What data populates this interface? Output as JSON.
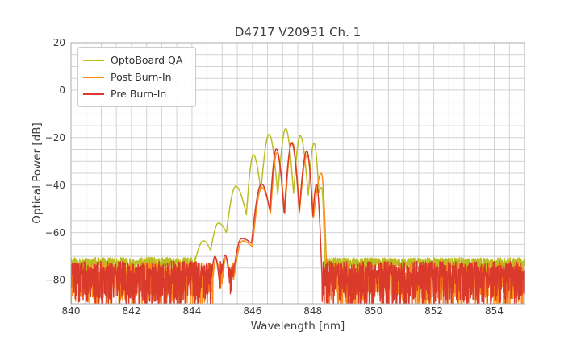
{
  "chart_data": {
    "type": "line",
    "title": "D4717 V20931 Ch. 1",
    "xlabel": "Wavelength [nm]",
    "ylabel": "Optical Power [dB]",
    "xlim": [
      840,
      855
    ],
    "ylim": [
      -90,
      20
    ],
    "x_ticks": [
      {
        "v": 840,
        "label": "840"
      },
      {
        "v": 842,
        "label": "842"
      },
      {
        "v": 844,
        "label": "844"
      },
      {
        "v": 846,
        "label": "846"
      },
      {
        "v": 848,
        "label": "848"
      },
      {
        "v": 850,
        "label": "850"
      },
      {
        "v": 852,
        "label": "852"
      },
      {
        "v": 854,
        "label": "854"
      }
    ],
    "y_ticks": [
      {
        "v": 20,
        "label": "20"
      },
      {
        "v": 0,
        "label": "0"
      },
      {
        "v": -20,
        "label": "−20"
      },
      {
        "v": -40,
        "label": "−40"
      },
      {
        "v": -60,
        "label": "−60"
      },
      {
        "v": -80,
        "label": "−80"
      }
    ],
    "grid": {
      "x_step": 0.5,
      "y_step": 5,
      "color": "#d2d2d2"
    },
    "frame_color": "#ababab",
    "legend_position": "upper left",
    "series": [
      {
        "name": "OptoBoard QA",
        "color": "#bcbd22",
        "line_width": 1.5,
        "seed": 11,
        "envelope_points": [
          [
            844.1,
            -72
          ],
          [
            844.38,
            -63.5
          ],
          [
            844.62,
            -67.5
          ],
          [
            844.88,
            -56
          ],
          [
            845.14,
            -60
          ],
          [
            845.45,
            -40.5
          ],
          [
            845.8,
            -52.5
          ],
          [
            846.03,
            -27.3
          ],
          [
            846.28,
            -42.5
          ],
          [
            846.55,
            -18.6
          ],
          [
            846.84,
            -44
          ],
          [
            847.1,
            -16.2
          ],
          [
            847.36,
            -43.5
          ],
          [
            847.58,
            -19.2
          ],
          [
            847.85,
            -44.5
          ],
          [
            848.04,
            -22.3
          ],
          [
            848.2,
            -43
          ],
          [
            848.29,
            -41
          ],
          [
            848.4,
            -73
          ]
        ],
        "noise_regions": [
          {
            "from": 840,
            "to": 844.45,
            "base": -72.4,
            "amp": 1.9,
            "dip_prob": 0.2,
            "dip_depth": 3
          },
          {
            "from": 848.33,
            "to": 855,
            "base": -72.6,
            "amp": 2.0,
            "dip_prob": 0.2,
            "dip_depth": 3.5
          }
        ]
      },
      {
        "name": "Post Burn-In",
        "color": "#fd8b17",
        "line_width": 1.5,
        "seed": 22,
        "envelope_points": [
          [
            844.7,
            -79
          ],
          [
            844.79,
            -71
          ],
          [
            844.97,
            -86
          ],
          [
            845.13,
            -70.5
          ],
          [
            845.31,
            -88
          ],
          [
            845.67,
            -63.5
          ],
          [
            846.0,
            -66
          ],
          [
            846.31,
            -41
          ],
          [
            846.6,
            -52
          ],
          [
            846.81,
            -26.5
          ],
          [
            847.07,
            -52.5
          ],
          [
            847.31,
            -21.9
          ],
          [
            847.56,
            -51.5
          ],
          [
            847.81,
            -27.3
          ],
          [
            848.02,
            -54
          ],
          [
            848.28,
            -35
          ],
          [
            848.46,
            -77
          ]
        ],
        "noise_regions": [
          {
            "from": 840,
            "to": 845.45,
            "base": -76.2,
            "amp": 3.4,
            "dip_prob": 0.5,
            "dip_depth": 16
          },
          {
            "from": 848.42,
            "to": 855,
            "base": -76.2,
            "amp": 3.4,
            "dip_prob": 0.5,
            "dip_depth": 16
          }
        ]
      },
      {
        "name": "Pre Burn-In",
        "color": "#d93a2b",
        "line_width": 1.5,
        "seed": 33,
        "envelope_points": [
          [
            844.66,
            -77
          ],
          [
            844.76,
            -70
          ],
          [
            844.94,
            -85
          ],
          [
            845.1,
            -69.5
          ],
          [
            845.28,
            -87
          ],
          [
            845.64,
            -62.5
          ],
          [
            845.97,
            -64.5
          ],
          [
            846.3,
            -39.5
          ],
          [
            846.58,
            -51
          ],
          [
            846.79,
            -24.8
          ],
          [
            847.05,
            -52
          ],
          [
            847.3,
            -22.4
          ],
          [
            847.55,
            -51
          ],
          [
            847.8,
            -25.6
          ],
          [
            848.0,
            -53
          ],
          [
            848.12,
            -39.8
          ],
          [
            848.3,
            -78
          ]
        ],
        "noise_regions": [
          {
            "from": 840,
            "to": 845.42,
            "base": -75.6,
            "amp": 3.4,
            "dip_prob": 0.5,
            "dip_depth": 16
          },
          {
            "from": 848.27,
            "to": 855,
            "base": -75.6,
            "amp": 3.4,
            "dip_prob": 0.5,
            "dip_depth": 16
          }
        ]
      }
    ]
  }
}
